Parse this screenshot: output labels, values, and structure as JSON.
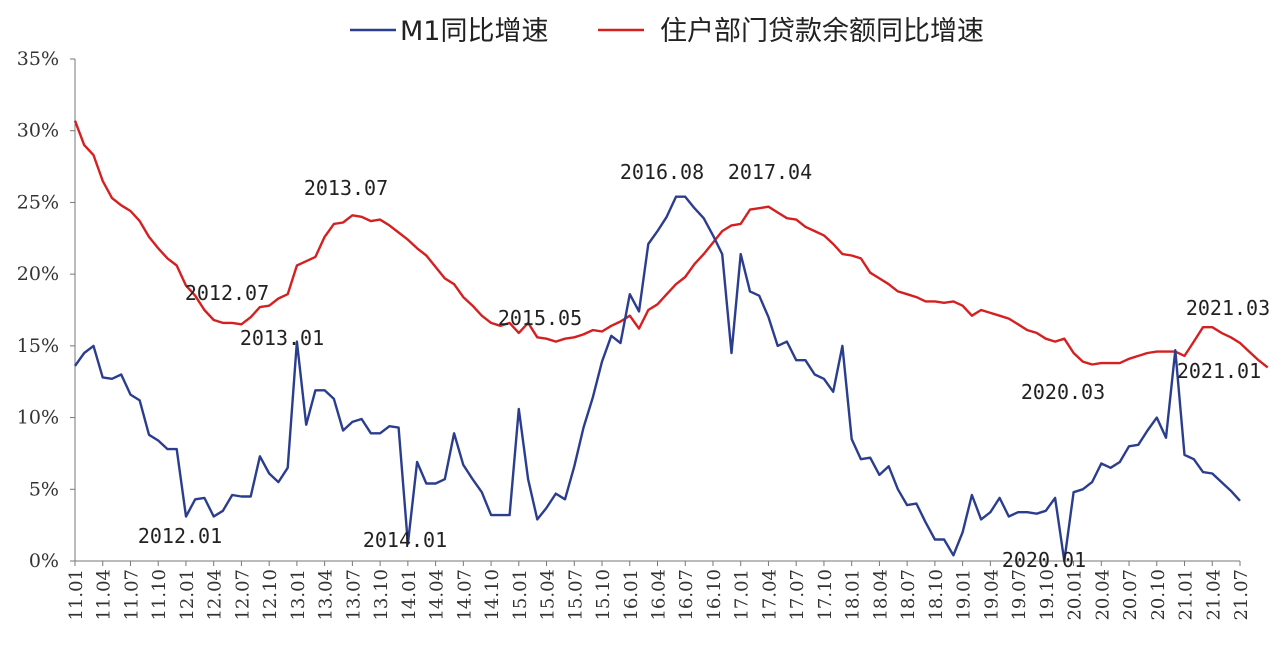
{
  "chart_data": {
    "type": "line",
    "ylim": [
      0,
      35
    ],
    "y_ticks": [
      "0%",
      "5%",
      "10%",
      "15%",
      "20%",
      "25%",
      "30%",
      "35%"
    ],
    "x_ticks": [
      "11.01",
      "11.04",
      "11.07",
      "11.10",
      "12.01",
      "12.04",
      "12.07",
      "12.10",
      "13.01",
      "13.04",
      "13.07",
      "13.10",
      "14.01",
      "14.04",
      "14.07",
      "14.10",
      "15.01",
      "15.04",
      "15.07",
      "15.10",
      "16.01",
      "16.04",
      "16.07",
      "16.10",
      "17.01",
      "17.04",
      "17.07",
      "17.10",
      "18.01",
      "18.04",
      "18.07",
      "18.10",
      "19.01",
      "19.04",
      "19.07",
      "19.10",
      "20.01",
      "20.04",
      "20.07",
      "20.10",
      "21.01",
      "21.04",
      "21.07"
    ],
    "legend_position": "top",
    "grid": false,
    "series": [
      {
        "name": "M1同比增速",
        "color": "#2b3d8f",
        "values": [
          13.6,
          14.5,
          15.0,
          12.8,
          12.7,
          13.0,
          11.6,
          11.2,
          8.8,
          8.4,
          7.8,
          7.8,
          3.1,
          4.3,
          4.4,
          3.1,
          3.5,
          4.6,
          4.5,
          4.5,
          7.3,
          6.1,
          5.5,
          6.5,
          15.3,
          9.5,
          11.9,
          11.9,
          11.3,
          9.1,
          9.7,
          9.9,
          8.9,
          8.9,
          9.4,
          9.3,
          1.2,
          6.9,
          5.4,
          5.4,
          5.7,
          8.9,
          6.7,
          5.7,
          4.8,
          3.2,
          3.2,
          3.2,
          10.6,
          5.7,
          2.9,
          3.7,
          4.7,
          4.3,
          6.6,
          9.3,
          11.4,
          13.9,
          15.7,
          15.2,
          18.6,
          17.4,
          22.1,
          23.0,
          24.0,
          25.4,
          25.4,
          24.6,
          23.9,
          22.7,
          21.4,
          14.5,
          21.4,
          18.8,
          18.5,
          17.0,
          15.0,
          15.3,
          14.0,
          14.0,
          13.0,
          12.7,
          11.8,
          15.0,
          8.5,
          7.1,
          7.2,
          6.0,
          6.6,
          5.0,
          3.9,
          4.0,
          2.7,
          1.5,
          1.5,
          0.4,
          2.0,
          4.6,
          2.9,
          3.4,
          4.4,
          3.1,
          3.4,
          3.4,
          3.3,
          3.5,
          4.4,
          0.0,
          4.8,
          5.0,
          5.5,
          6.8,
          6.5,
          6.9,
          8.0,
          8.1,
          9.1,
          10.0,
          8.6,
          14.7,
          7.4,
          7.1,
          6.2,
          6.1,
          5.5,
          4.9,
          4.2
        ],
        "annotations": [
          {
            "label": "2012.01"
          },
          {
            "label": "2013.01"
          },
          {
            "label": "2014.01"
          },
          {
            "label": "2016.08"
          },
          {
            "label": "2020.01"
          },
          {
            "label": "2021.01"
          }
        ]
      },
      {
        "name": "住户部门贷款余额同比增速",
        "color": "#d42020",
        "values": [
          30.7,
          29.0,
          28.3,
          26.5,
          25.3,
          24.8,
          24.4,
          23.7,
          22.6,
          21.8,
          21.1,
          20.6,
          19.2,
          18.5,
          17.5,
          16.8,
          16.6,
          16.6,
          16.5,
          17.0,
          17.7,
          17.8,
          18.3,
          18.6,
          20.6,
          20.9,
          21.2,
          22.6,
          23.5,
          23.6,
          24.1,
          24.0,
          23.7,
          23.8,
          23.4,
          22.9,
          22.4,
          21.8,
          21.3,
          20.5,
          19.7,
          19.3,
          18.4,
          17.8,
          17.1,
          16.6,
          16.4,
          16.6,
          15.9,
          16.6,
          15.6,
          15.5,
          15.3,
          15.5,
          15.6,
          15.8,
          16.1,
          16.0,
          16.4,
          16.7,
          17.1,
          16.2,
          17.5,
          17.9,
          18.6,
          19.3,
          19.8,
          20.7,
          21.4,
          22.2,
          23.0,
          23.4,
          23.5,
          24.5,
          24.6,
          24.7,
          24.3,
          23.9,
          23.8,
          23.3,
          23.0,
          22.7,
          22.1,
          21.4,
          21.3,
          21.1,
          20.1,
          19.7,
          19.3,
          18.8,
          18.6,
          18.4,
          18.1,
          18.1,
          18.0,
          18.1,
          17.8,
          17.1,
          17.5,
          17.3,
          17.1,
          16.9,
          16.5,
          16.1,
          15.9,
          15.5,
          15.3,
          15.5,
          14.5,
          13.9,
          13.7,
          13.8,
          13.8,
          13.8,
          14.1,
          14.3,
          14.5,
          14.6,
          14.6,
          14.6,
          14.3,
          15.3,
          16.3,
          16.3,
          15.9,
          15.6,
          15.2,
          14.6,
          14.0,
          13.5
        ],
        "annotations": [
          {
            "label": "2012.07"
          },
          {
            "label": "2013.07"
          },
          {
            "label": "2015.05"
          },
          {
            "label": "2017.04"
          },
          {
            "label": "2020.03"
          },
          {
            "label": "2021.03"
          }
        ]
      }
    ]
  }
}
